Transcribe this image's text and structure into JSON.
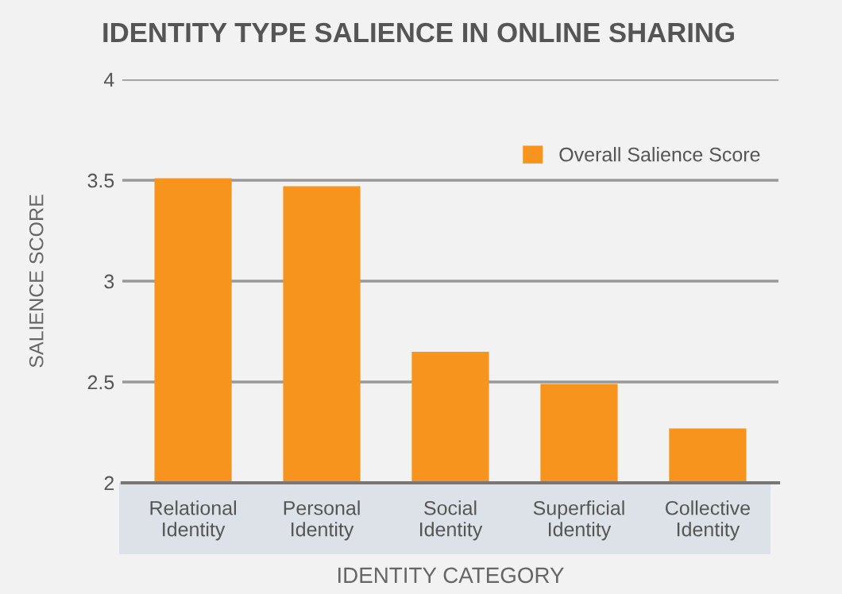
{
  "chart_data": {
    "type": "bar",
    "title": "IDENTITY TYPE SALIENCE IN ONLINE SHARING",
    "xlabel": "IDENTITY CATEGORY",
    "ylabel": "SALIENCE SCORE",
    "categories": [
      "Relational\nIdentity",
      "Personal\nIdentity",
      "Social\nIdentity",
      "Superficial\nIdentity",
      "Collective\nIdentity"
    ],
    "series": [
      {
        "name": "Overall Salience Score",
        "color": "#f7941e",
        "values": [
          3.51,
          3.47,
          2.65,
          2.49,
          2.27
        ]
      }
    ],
    "ylim": [
      2,
      4
    ],
    "yticks": [
      2,
      2.5,
      3,
      3.5,
      4
    ],
    "grid": "y",
    "legend": "top right"
  }
}
